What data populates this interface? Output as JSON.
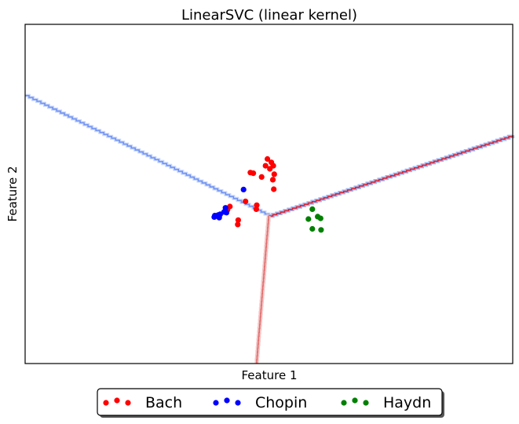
{
  "chart_data": {
    "type": "scatter",
    "title": "LinearSVC (linear kernel)",
    "xlabel": "Feature 1",
    "ylabel": "Feature 2",
    "xlim": [
      0,
      1
    ],
    "ylim": [
      0,
      1
    ],
    "ticks_visible": false,
    "grid": false,
    "legend_placement": "bottom-center",
    "colors": {
      "Bach": "#ff0000",
      "Chopin": "#0000ff",
      "Haydn": "#008000",
      "boundary_blue": "#6b8ff0",
      "boundary_red": "#e0202a"
    },
    "series": [
      {
        "name": "Bach",
        "color": "#ff0000",
        "points": [
          [
            0.497,
            0.603
          ],
          [
            0.505,
            0.593
          ],
          [
            0.468,
            0.561
          ],
          [
            0.462,
            0.563
          ],
          [
            0.493,
            0.583
          ],
          [
            0.502,
            0.574
          ],
          [
            0.509,
            0.583
          ],
          [
            0.511,
            0.558
          ],
          [
            0.508,
            0.542
          ],
          [
            0.51,
            0.514
          ],
          [
            0.485,
            0.55
          ],
          [
            0.452,
            0.478
          ],
          [
            0.475,
            0.467
          ],
          [
            0.474,
            0.455
          ],
          [
            0.436,
            0.41
          ],
          [
            0.437,
            0.423
          ],
          [
            0.42,
            0.463
          ],
          [
            0.415,
            0.453
          ]
        ]
      },
      {
        "name": "Chopin",
        "color": "#0000ff",
        "points": [
          [
            0.448,
            0.513
          ],
          [
            0.411,
            0.459
          ],
          [
            0.408,
            0.447
          ],
          [
            0.413,
            0.445
          ],
          [
            0.4,
            0.44
          ],
          [
            0.396,
            0.438
          ],
          [
            0.389,
            0.436
          ],
          [
            0.398,
            0.43
          ],
          [
            0.388,
            0.432
          ]
        ]
      },
      {
        "name": "Haydn",
        "color": "#008000",
        "points": [
          [
            0.589,
            0.455
          ],
          [
            0.6,
            0.433
          ],
          [
            0.606,
            0.428
          ],
          [
            0.581,
            0.426
          ],
          [
            0.589,
            0.397
          ],
          [
            0.607,
            0.394
          ]
        ]
      }
    ],
    "decision_boundaries": [
      {
        "between": [
          "Bach",
          "Chopin"
        ],
        "points": [
          [
            0.0,
            0.79
          ],
          [
            0.5,
            0.435
          ]
        ]
      },
      {
        "between": [
          "Bach",
          "Haydn"
        ],
        "points": [
          [
            0.5,
            0.435
          ],
          [
            1.0,
            0.673
          ]
        ]
      },
      {
        "between": [
          "Chopin",
          "Haydn"
        ],
        "points": [
          [
            0.5,
            0.435
          ],
          [
            0.475,
            0.0
          ]
        ]
      }
    ]
  }
}
